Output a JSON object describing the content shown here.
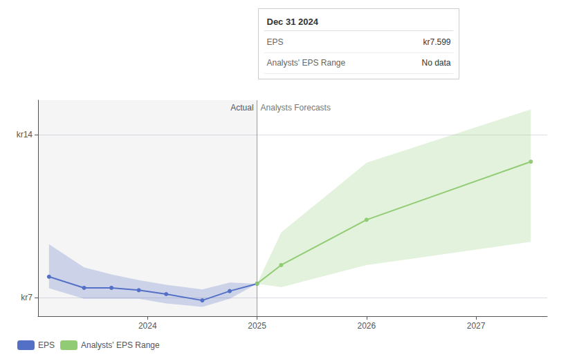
{
  "chart_data": {
    "type": "line",
    "xlim": [
      2023.0,
      2027.65
    ],
    "xticks": [
      2024,
      2025,
      2026,
      2027
    ],
    "ylim": [
      6.2,
      15.5
    ],
    "yticks": [
      {
        "value": 7,
        "label": "kr7"
      },
      {
        "value": 14,
        "label": "kr14"
      }
    ],
    "grid": true,
    "legend": "lower left",
    "divider_x": 2025.0,
    "annotations": [
      "Actual",
      "Analysts Forecasts"
    ],
    "series": [
      {
        "name": "EPS",
        "marker": "circle",
        "x": [
          2023.1,
          2023.42,
          2023.67,
          2023.92,
          2024.17,
          2024.5,
          2024.75,
          2025.0
        ],
        "values": [
          7.9,
          7.42,
          7.42,
          7.32,
          7.15,
          6.88,
          7.28,
          7.599
        ],
        "band_upper": [
          9.3,
          8.3,
          8.0,
          7.75,
          7.55,
          7.35,
          7.65,
          7.599
        ],
        "band_lower": [
          7.4,
          6.95,
          6.95,
          6.95,
          6.75,
          6.6,
          6.95,
          7.599
        ]
      },
      {
        "name": "Analysts' EPS Range",
        "marker": "circle",
        "x": [
          2025.0,
          2025.22,
          2026.0,
          2027.5
        ],
        "values": [
          7.599,
          8.4,
          10.35,
          12.85
        ],
        "band_upper": [
          7.599,
          9.8,
          12.8,
          15.1
        ],
        "band_lower": [
          7.599,
          7.45,
          8.4,
          9.4
        ]
      }
    ],
    "tooltip": {
      "title": "Dec 31 2024",
      "rows": [
        {
          "label": "EPS",
          "value": "kr7.599"
        },
        {
          "label": "Analysts' EPS Range",
          "value": "No data"
        }
      ]
    }
  }
}
